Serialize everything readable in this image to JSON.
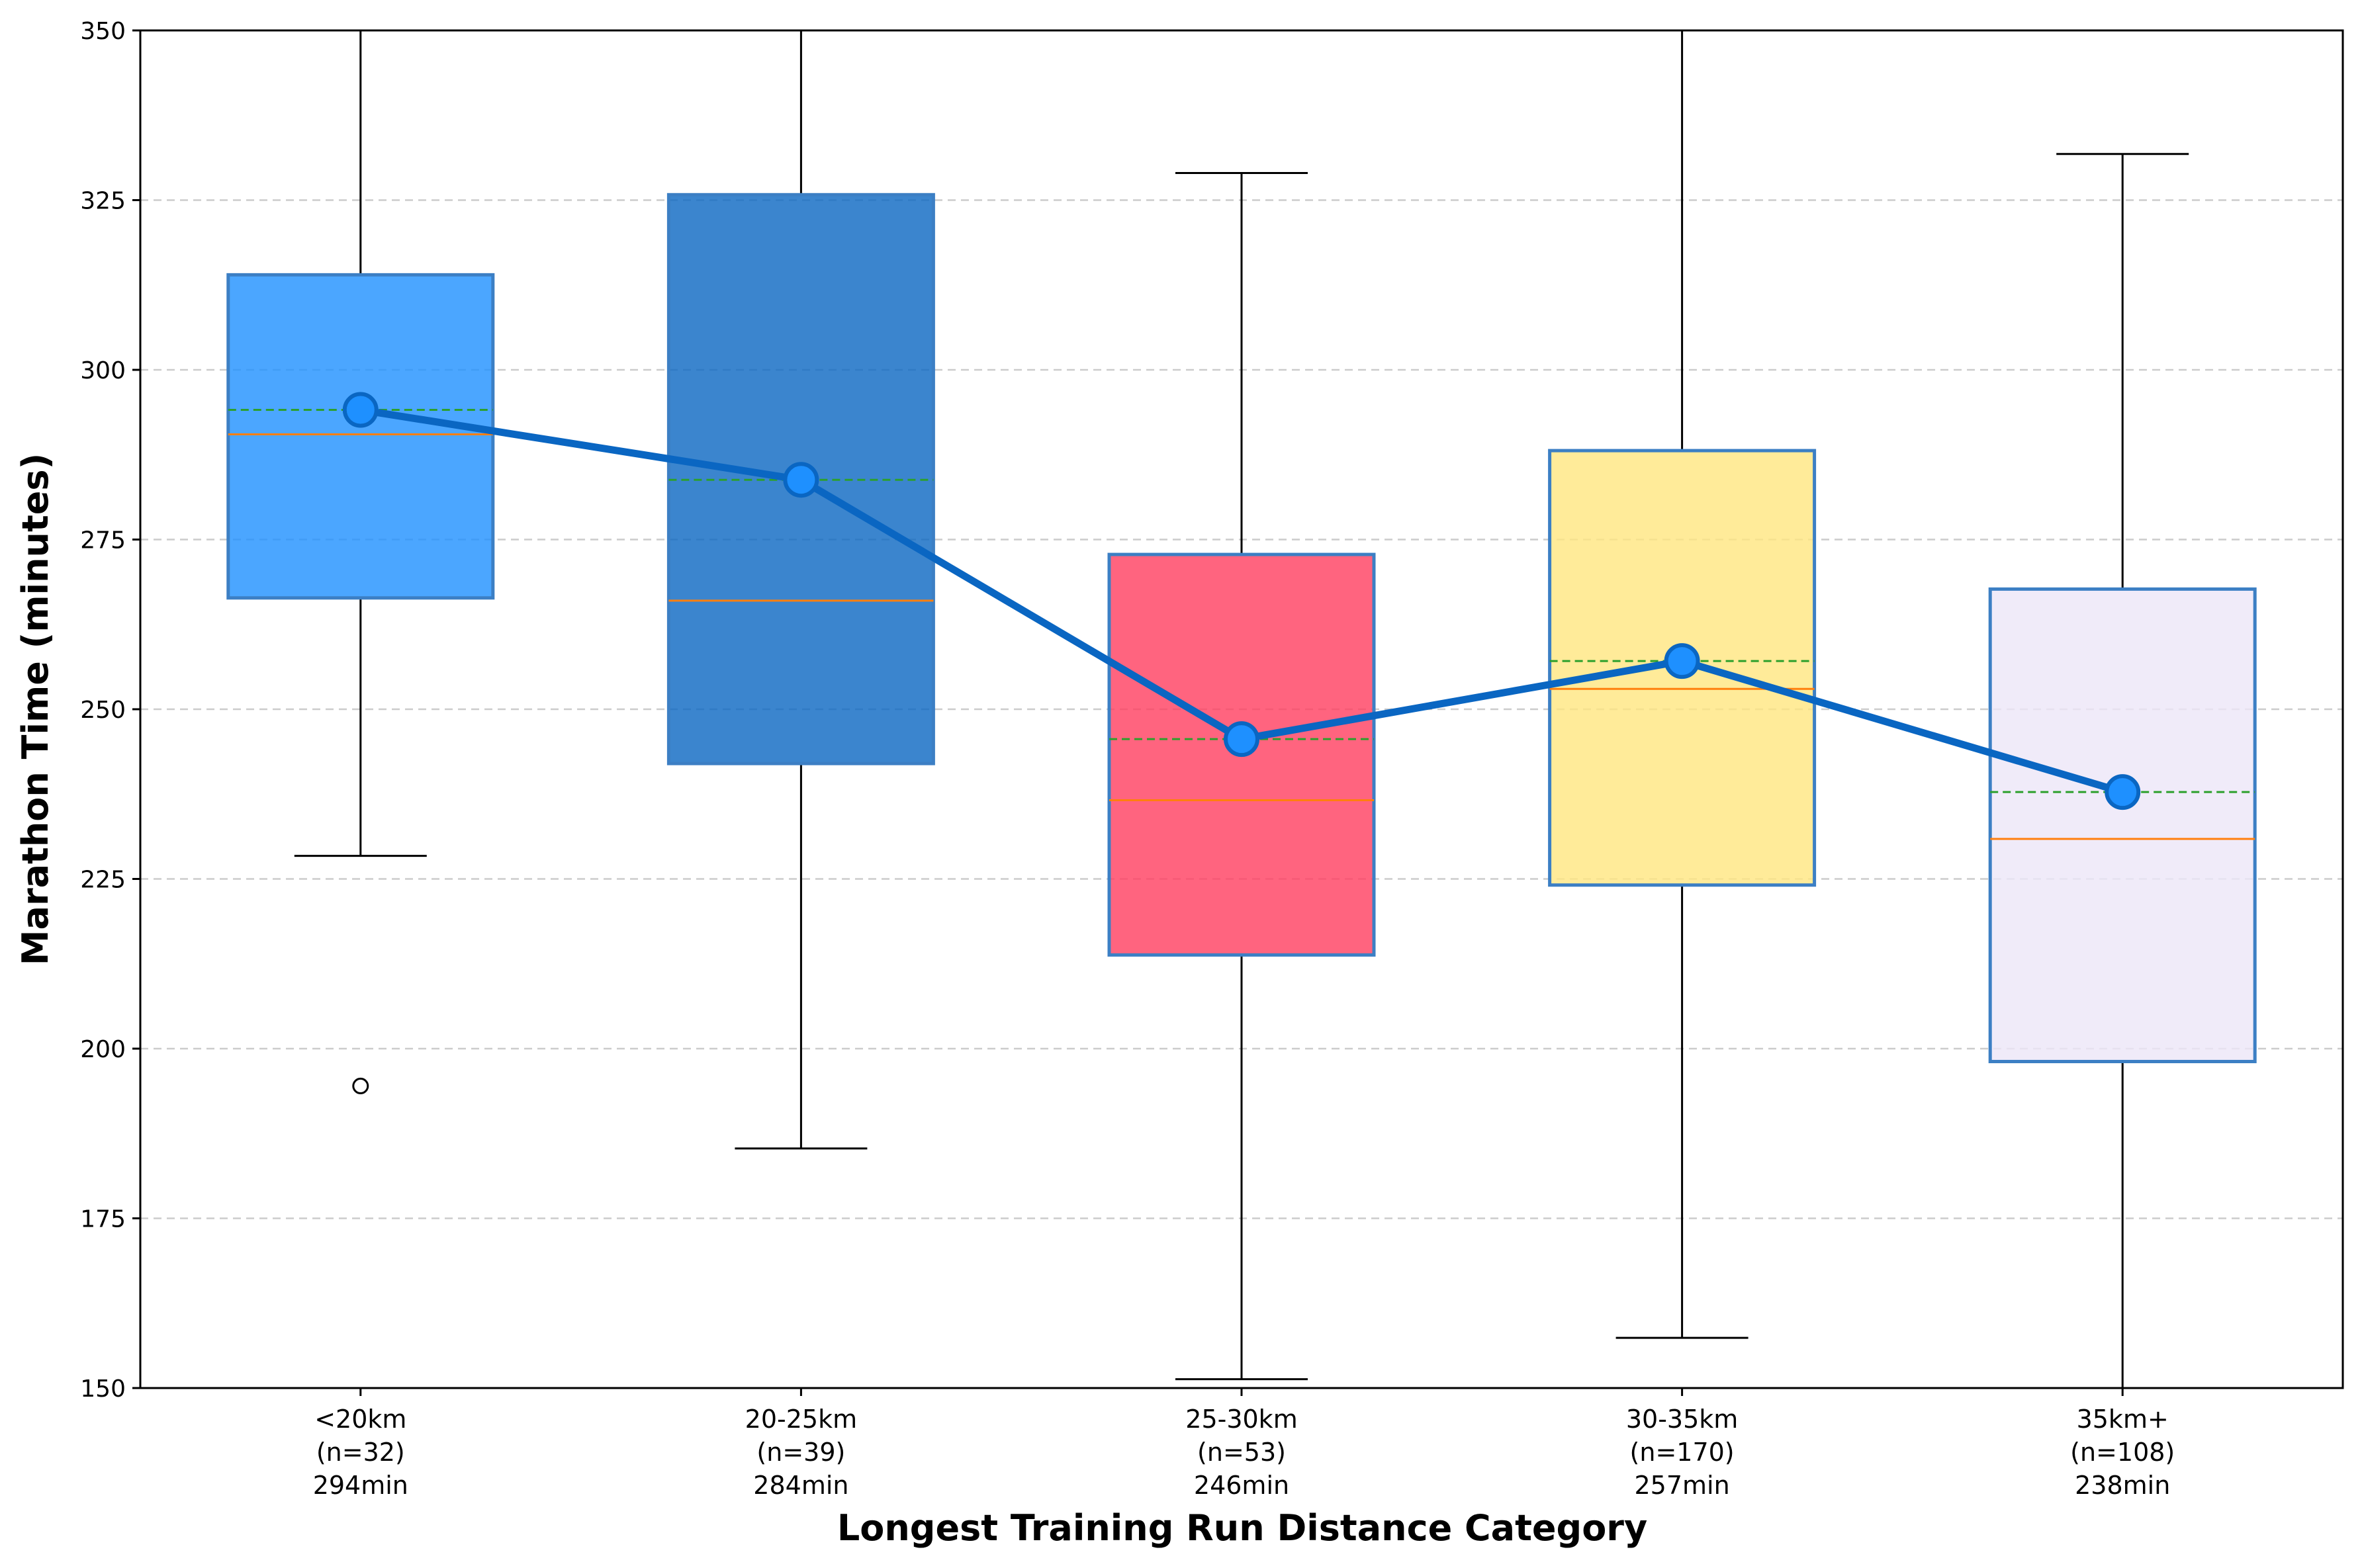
{
  "chart_data": {
    "type": "box",
    "xlabel": "Longest Training Run Distance Category",
    "ylabel": "Marathon Time (minutes)",
    "ylim": [
      150,
      350
    ],
    "yticks": [
      150,
      175,
      200,
      225,
      250,
      275,
      300,
      325,
      350
    ],
    "grid": "horizontal-dashed",
    "categories": [
      {
        "label": "<20km",
        "n_text": "(n=32)",
        "mean_text": "294min",
        "q1": 266.4,
        "median": 290.5,
        "q3": 314.0,
        "mean": 294.1,
        "whisker_low": 228.4,
        "whisker_high": 350,
        "outliers": [
          194.5
        ],
        "fill": "#1E90FF"
      },
      {
        "label": "20-25km",
        "n_text": "(n=39)",
        "mean_text": "284min",
        "q1": 242.0,
        "median": 266.0,
        "q3": 325.8,
        "mean": 283.8,
        "whisker_low": 185.3,
        "whisker_high": 350,
        "outliers": [],
        "fill": "#0A66C2"
      },
      {
        "label": "25-30km",
        "n_text": "(n=53)",
        "mean_text": "246min",
        "q1": 213.8,
        "median": 236.6,
        "q3": 272.8,
        "mean": 245.6,
        "whisker_low": 151.3,
        "whisker_high": 329.0,
        "outliers": [],
        "fill": "#FF3D5F"
      },
      {
        "label": "30-35km",
        "n_text": "(n=170)",
        "mean_text": "257min",
        "q1": 224.1,
        "median": 253.0,
        "q3": 288.1,
        "mean": 257.1,
        "whisker_low": 157.4,
        "whisker_high": 350,
        "outliers": [],
        "fill": "#FFE680"
      },
      {
        "label": "35km+",
        "n_text": "(n=108)",
        "mean_text": "238min",
        "q1": 198.1,
        "median": 230.9,
        "q3": 267.7,
        "mean": 237.8,
        "whisker_low": 150,
        "whisker_high": 331.8,
        "outliers": [],
        "fill": "#ECE6F8"
      }
    ],
    "mean_line": {
      "values": [
        294.1,
        283.8,
        245.6,
        257.1,
        237.8
      ],
      "color": "#0A66C2",
      "marker_color": "#1E90FF"
    },
    "colors": {
      "box_edge": "#3C7FC4",
      "median": "#FF7F0E",
      "mean_dashed": "#2CA02C",
      "grid": "#CCCCCC"
    }
  }
}
